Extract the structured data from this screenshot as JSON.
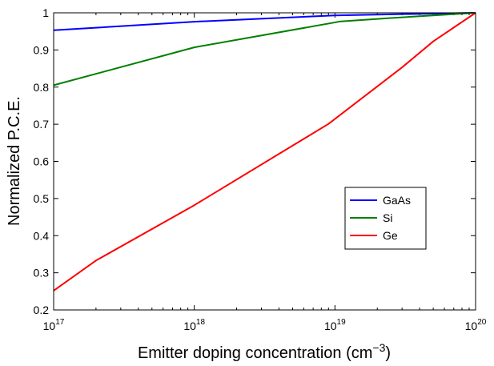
{
  "chart_data": {
    "type": "line",
    "xscale": "log",
    "xlim": [
      1e+17,
      1e+20
    ],
    "ylim": [
      0.2,
      1.0
    ],
    "xlabel": "Emitter doping concentration (cm",
    "xlabel_exponent": "−3",
    "xlabel_suffix": ")",
    "ylabel": "Normalized P.C.E.",
    "grid": false,
    "legend_position": "lower-right",
    "xticks": [
      {
        "value": 1e+17,
        "base": "10",
        "exp": "17"
      },
      {
        "value": 1e+18,
        "base": "10",
        "exp": "18"
      },
      {
        "value": 1e+19,
        "base": "10",
        "exp": "19"
      },
      {
        "value": 1e+20,
        "base": "10",
        "exp": "20"
      }
    ],
    "yticks": [
      {
        "value": 0.2,
        "label": "0.2"
      },
      {
        "value": 0.3,
        "label": "0.3"
      },
      {
        "value": 0.4,
        "label": "0.4"
      },
      {
        "value": 0.5,
        "label": "0.5"
      },
      {
        "value": 0.6,
        "label": "0.6"
      },
      {
        "value": 0.7,
        "label": "0.7"
      },
      {
        "value": 0.8,
        "label": "0.8"
      },
      {
        "value": 0.9,
        "label": "0.9"
      },
      {
        "value": 1.0,
        "label": "1"
      }
    ],
    "series": [
      {
        "name": "GaAs",
        "color": "#0000ff",
        "x": [
          1e+17,
          1e+18,
          1e+19,
          1e+20
        ],
        "y": [
          0.953,
          0.976,
          0.993,
          1.0
        ]
      },
      {
        "name": "Si",
        "color": "#008000",
        "x": [
          1e+17,
          1e+18,
          1.1e+19,
          2.5e+19,
          1e+20
        ],
        "y": [
          0.805,
          0.907,
          0.977,
          0.986,
          1.0
        ]
      },
      {
        "name": "Ge",
        "color": "#ff0000",
        "x": [
          1e+17,
          2e+17,
          1e+18,
          9e+18,
          3e+19,
          5e+19,
          1e+20
        ],
        "y": [
          0.252,
          0.333,
          0.482,
          0.701,
          0.853,
          0.923,
          1.0
        ]
      }
    ]
  }
}
